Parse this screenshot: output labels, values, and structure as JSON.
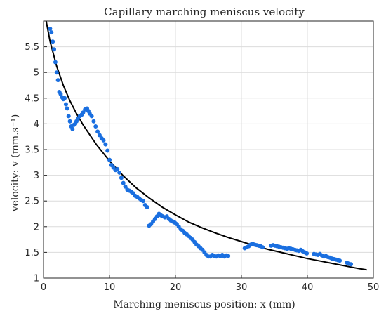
{
  "chart_data": {
    "type": "scatter",
    "title": "Capillary marching meniscus velocity",
    "xlabel": "Marching meniscus position: x (mm)",
    "ylabel": "velocity: v (mm.s⁻¹)",
    "xlim": [
      0,
      50
    ],
    "ylim": [
      1,
      6
    ],
    "xticks": [
      0,
      10,
      20,
      30,
      40,
      50
    ],
    "yticks": [
      1,
      1.5,
      2,
      2.5,
      3,
      3.5,
      4,
      4.5,
      5,
      5.5
    ],
    "grid": true,
    "colors": {
      "scatter": "#1a6fe0",
      "fit": "#000000",
      "grid": "#dcdcdc",
      "axis": "#262626"
    },
    "series": [
      {
        "kind": "scatter",
        "x": [
          1.0,
          1.2,
          1.4,
          1.6,
          1.8,
          2.0,
          2.2,
          2.4,
          2.6,
          2.8,
          3.0,
          3.2,
          3.4,
          3.6,
          3.8,
          4.0,
          4.2,
          4.4,
          4.6,
          4.8,
          5.0,
          5.2,
          5.5,
          5.8,
          6.0,
          6.3,
          6.6,
          6.8,
          7.0,
          7.3,
          7.6,
          7.9,
          8.2,
          8.5,
          8.8,
          9.1,
          9.4,
          9.7,
          10.0,
          10.3,
          10.6,
          10.9,
          11.2,
          11.5,
          11.8,
          12.1,
          12.4,
          12.7,
          13.0,
          13.3,
          13.6,
          13.9,
          14.2,
          14.5,
          14.8,
          15.1,
          15.4,
          15.7,
          16.0,
          16.3,
          16.6,
          16.9,
          17.2,
          17.5,
          17.8,
          18.1,
          18.4,
          18.7,
          19.0,
          19.3,
          19.6,
          19.9,
          20.2,
          20.5,
          20.8,
          21.1,
          21.4,
          21.7,
          22.0,
          22.3,
          22.6,
          22.9,
          23.2,
          23.5,
          23.8,
          24.1,
          24.4,
          24.7,
          25.0,
          25.3,
          25.6,
          25.9,
          26.2,
          26.5,
          26.8,
          27.1,
          27.4,
          27.7,
          28.0,
          30.5,
          30.8,
          31.1,
          31.4,
          31.7,
          32.0,
          32.3,
          32.6,
          32.9,
          33.2,
          34.5,
          34.8,
          35.1,
          35.4,
          35.7,
          36.0,
          36.3,
          36.6,
          36.9,
          37.2,
          37.5,
          37.8,
          38.1,
          38.4,
          38.7,
          39.0,
          39.3,
          39.6,
          39.9,
          41.0,
          41.3,
          41.6,
          41.9,
          42.2,
          42.5,
          42.8,
          43.1,
          43.4,
          43.7,
          44.0,
          44.3,
          44.6,
          44.9,
          46.0,
          46.3,
          46.6
        ],
        "y": [
          5.85,
          5.78,
          5.6,
          5.45,
          5.2,
          5.0,
          4.85,
          4.62,
          4.58,
          4.52,
          4.48,
          4.5,
          4.38,
          4.3,
          4.15,
          4.05,
          3.95,
          3.9,
          3.98,
          4.0,
          4.05,
          4.1,
          4.15,
          4.18,
          4.22,
          4.28,
          4.3,
          4.25,
          4.2,
          4.15,
          4.05,
          3.95,
          3.85,
          3.78,
          3.72,
          3.68,
          3.6,
          3.48,
          3.3,
          3.2,
          3.15,
          3.1,
          3.12,
          3.05,
          2.95,
          2.85,
          2.78,
          2.72,
          2.7,
          2.68,
          2.65,
          2.6,
          2.58,
          2.55,
          2.52,
          2.5,
          2.42,
          2.38,
          2.02,
          2.05,
          2.1,
          2.15,
          2.2,
          2.25,
          2.22,
          2.2,
          2.18,
          2.2,
          2.15,
          2.12,
          2.1,
          2.08,
          2.05,
          2.0,
          1.95,
          1.92,
          1.88,
          1.85,
          1.82,
          1.78,
          1.75,
          1.7,
          1.65,
          1.62,
          1.58,
          1.55,
          1.5,
          1.45,
          1.42,
          1.42,
          1.45,
          1.43,
          1.42,
          1.44,
          1.43,
          1.45,
          1.42,
          1.44,
          1.43,
          1.58,
          1.6,
          1.62,
          1.65,
          1.67,
          1.65,
          1.64,
          1.63,
          1.62,
          1.6,
          1.63,
          1.64,
          1.63,
          1.62,
          1.61,
          1.6,
          1.59,
          1.58,
          1.57,
          1.58,
          1.57,
          1.56,
          1.55,
          1.54,
          1.53,
          1.55,
          1.52,
          1.5,
          1.48,
          1.47,
          1.46,
          1.45,
          1.47,
          1.44,
          1.42,
          1.43,
          1.41,
          1.4,
          1.38,
          1.37,
          1.36,
          1.35,
          1.34,
          1.3,
          1.28,
          1.27
        ]
      },
      {
        "kind": "line",
        "x": [
          0.4,
          1,
          2,
          3,
          4,
          5,
          6,
          8,
          10,
          12,
          14,
          16,
          18,
          20,
          22,
          24,
          26,
          28,
          30,
          32,
          34,
          36,
          38,
          40,
          42,
          44,
          46,
          48,
          49
        ],
        "y": [
          6.0,
          5.6,
          5.12,
          4.75,
          4.45,
          4.2,
          3.98,
          3.6,
          3.28,
          3.0,
          2.76,
          2.56,
          2.38,
          2.23,
          2.09,
          1.98,
          1.88,
          1.79,
          1.71,
          1.63,
          1.56,
          1.5,
          1.44,
          1.38,
          1.33,
          1.28,
          1.23,
          1.18,
          1.16
        ]
      }
    ]
  }
}
